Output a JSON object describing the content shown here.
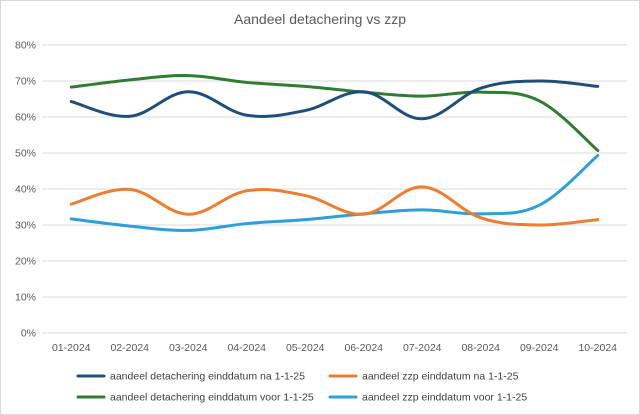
{
  "chart_data": {
    "type": "line",
    "title": "Aandeel detachering vs zzp",
    "xlabel": "",
    "ylabel": "",
    "categories": [
      "01-2024",
      "02-2024",
      "03-2024",
      "04-2024",
      "05-2024",
      "06-2024",
      "07-2024",
      "08-2024",
      "09-2024",
      "10-2024"
    ],
    "ylim": [
      0,
      80
    ],
    "yticks": [
      0,
      10,
      20,
      30,
      40,
      50,
      60,
      70,
      80
    ],
    "ytick_labels": [
      "0%",
      "10%",
      "20%",
      "30%",
      "40%",
      "50%",
      "60%",
      "70%",
      "80%"
    ],
    "grid": true,
    "legend_position": "bottom",
    "smooth": true,
    "series": [
      {
        "name": "aandeel detachering einddatum na 1-1-25",
        "color": "#1f4e79",
        "values": [
          64.3,
          60.2,
          67.0,
          60.5,
          61.8,
          67.0,
          59.5,
          68.0,
          70.0,
          68.5
        ]
      },
      {
        "name": "aandeel zzp einddatum na 1-1-25",
        "color": "#ed7d31",
        "values": [
          35.8,
          39.9,
          33.0,
          39.5,
          38.2,
          33.0,
          40.6,
          32.0,
          30.0,
          31.5
        ]
      },
      {
        "name": "aandeel detachering einddatum voor 1-1-25",
        "color": "#2e7d32",
        "values": [
          68.3,
          70.3,
          71.5,
          69.6,
          68.5,
          66.9,
          65.8,
          66.9,
          64.5,
          50.7
        ]
      },
      {
        "name": "aandeel zzp einddatum voor 1-1-25",
        "color": "#2e9fd8",
        "values": [
          31.7,
          29.7,
          28.5,
          30.4,
          31.5,
          33.1,
          34.2,
          33.1,
          35.5,
          49.3
        ]
      }
    ]
  }
}
